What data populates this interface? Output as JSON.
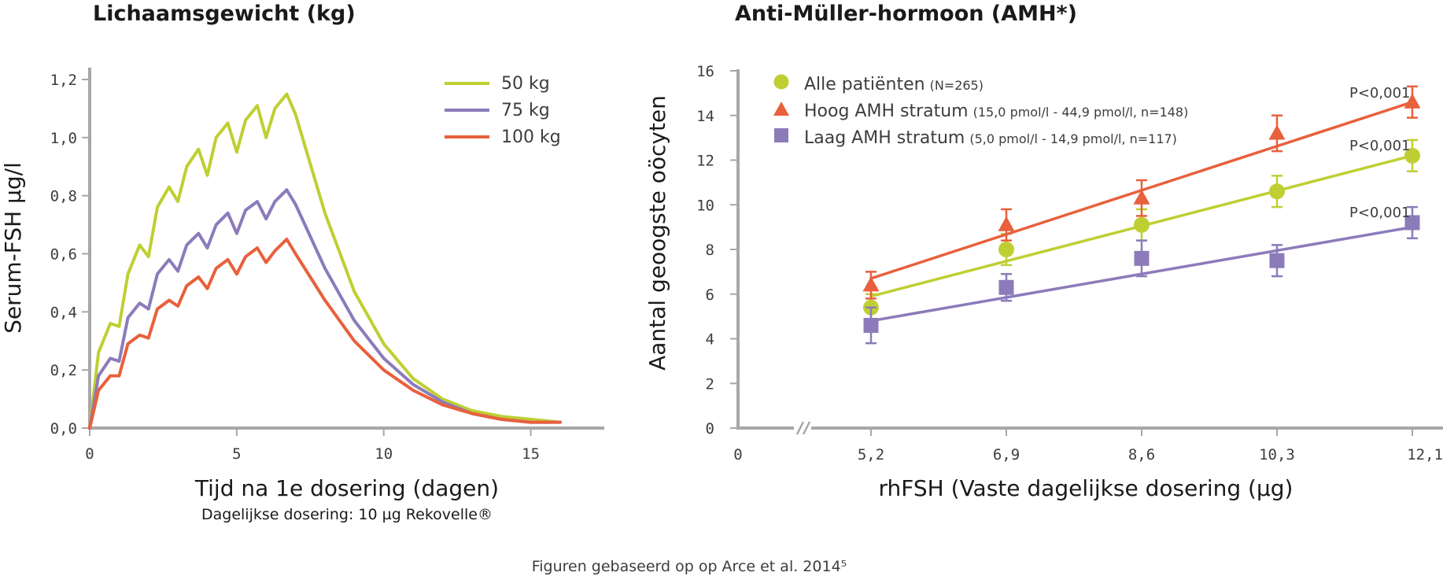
{
  "caption": "Figuren gebaseerd op op Arce et al. 2014⁵",
  "colors": {
    "green": "#bfcf33",
    "purple": "#8c7bba",
    "orange": "#e8603c",
    "axis": "#a7a7ab"
  },
  "chart_data": [
    {
      "type": "line",
      "title": "Lichaamsgewicht (kg)",
      "xlabel": "Tijd na 1e dosering (dagen)",
      "xlabel_note": "Dagelijkse dosering: 10 µg Rekovelle®",
      "ylabel": "Serum-FSH µg/l",
      "xlim": [
        0,
        17.5
      ],
      "ylim": [
        0,
        1.2
      ],
      "x_ticks": [
        0,
        5,
        10,
        15
      ],
      "x_tick_labels": [
        "0",
        "5",
        "10",
        "15"
      ],
      "y_ticks": [
        0,
        0.2,
        0.4,
        0.6,
        0.8,
        1.0,
        1.2
      ],
      "y_tick_labels": [
        "0,0",
        "0,2",
        "0,4",
        "0,6",
        "0,8",
        "1,0",
        "1,2"
      ],
      "legend_position": "top-right",
      "series": [
        {
          "name": "50 kg",
          "color": "#bfcf33",
          "x": [
            0,
            0.3,
            0.7,
            1.0,
            1.3,
            1.7,
            2.0,
            2.3,
            2.7,
            3.0,
            3.3,
            3.7,
            4.0,
            4.3,
            4.7,
            5.0,
            5.3,
            5.7,
            6.0,
            6.3,
            6.7,
            7.0,
            8.0,
            9.0,
            10.0,
            11.0,
            12.0,
            13.0,
            14.0,
            15.0,
            16.0
          ],
          "y": [
            0,
            0.26,
            0.36,
            0.35,
            0.53,
            0.63,
            0.59,
            0.76,
            0.83,
            0.78,
            0.9,
            0.96,
            0.87,
            1.0,
            1.05,
            0.95,
            1.06,
            1.11,
            1.0,
            1.1,
            1.15,
            1.08,
            0.74,
            0.47,
            0.29,
            0.17,
            0.1,
            0.06,
            0.04,
            0.03,
            0.02
          ]
        },
        {
          "name": "75 kg",
          "color": "#8c7bba",
          "x": [
            0,
            0.3,
            0.7,
            1.0,
            1.3,
            1.7,
            2.0,
            2.3,
            2.7,
            3.0,
            3.3,
            3.7,
            4.0,
            4.3,
            4.7,
            5.0,
            5.3,
            5.7,
            6.0,
            6.3,
            6.7,
            7.0,
            8.0,
            9.0,
            10.0,
            11.0,
            12.0,
            13.0,
            14.0,
            15.0,
            16.0
          ],
          "y": [
            0,
            0.18,
            0.24,
            0.23,
            0.38,
            0.43,
            0.41,
            0.53,
            0.58,
            0.54,
            0.63,
            0.67,
            0.62,
            0.7,
            0.74,
            0.67,
            0.75,
            0.78,
            0.72,
            0.78,
            0.82,
            0.77,
            0.55,
            0.37,
            0.24,
            0.15,
            0.09,
            0.05,
            0.03,
            0.02,
            0.02
          ]
        },
        {
          "name": "100 kg",
          "color": "#e8603c",
          "x": [
            0,
            0.3,
            0.7,
            1.0,
            1.3,
            1.7,
            2.0,
            2.3,
            2.7,
            3.0,
            3.3,
            3.7,
            4.0,
            4.3,
            4.7,
            5.0,
            5.3,
            5.7,
            6.0,
            6.3,
            6.7,
            7.0,
            8.0,
            9.0,
            10.0,
            11.0,
            12.0,
            13.0,
            14.0,
            15.0,
            16.0
          ],
          "y": [
            0,
            0.13,
            0.18,
            0.18,
            0.29,
            0.32,
            0.31,
            0.41,
            0.44,
            0.42,
            0.49,
            0.52,
            0.48,
            0.55,
            0.58,
            0.53,
            0.59,
            0.62,
            0.57,
            0.61,
            0.65,
            0.6,
            0.44,
            0.3,
            0.2,
            0.13,
            0.08,
            0.05,
            0.03,
            0.02,
            0.02
          ]
        }
      ]
    },
    {
      "type": "scatter",
      "title": "Anti-Müller-hormoon (AMH*)",
      "xlabel": "rhFSH (Vaste dagelijkse dosering (µg)",
      "ylabel": "Aantal geoogste oöcyten",
      "categories": [
        "5,2",
        "6,9",
        "8,6",
        "10,3",
        "12,1"
      ],
      "x_origin_label": "0",
      "axis_break": true,
      "x_index_range": [
        -0.5,
        4
      ],
      "ylim": [
        0,
        16
      ],
      "y_ticks": [
        0,
        2,
        4,
        6,
        8,
        10,
        12,
        14,
        16
      ],
      "y_tick_labels": [
        "0",
        "2",
        "4",
        "6",
        "8",
        "10",
        "12",
        "14",
        "16"
      ],
      "legend_position": "top-left",
      "series": [
        {
          "name": "Alle patiënten",
          "detail": "(N=265)",
          "marker": "circle",
          "color": "#bfcf33",
          "values": [
            5.4,
            8.0,
            9.1,
            10.6,
            12.2
          ],
          "err_low": [
            0.6,
            0.7,
            0.7,
            0.7,
            0.7
          ],
          "err_high": [
            0.6,
            0.7,
            0.7,
            0.7,
            0.7
          ],
          "fit": [
            5.9,
            12.2
          ],
          "p_value": "P<0,001"
        },
        {
          "name": "Hoog AMH stratum",
          "detail": "(15,0 pmol/l - 44,9 pmol/l, n=148)",
          "marker": "triangle",
          "color": "#e8603c",
          "values": [
            6.4,
            9.1,
            10.3,
            13.2,
            14.6
          ],
          "err_low": [
            0.6,
            0.7,
            0.8,
            0.8,
            0.7
          ],
          "err_high": [
            0.6,
            0.7,
            0.8,
            0.8,
            0.7
          ],
          "fit": [
            6.7,
            14.6
          ],
          "p_value": "P<0,001"
        },
        {
          "name": "Laag AMH stratum",
          "detail": "(5,0 pmol/l - 14,9 pmol/l, n=117)",
          "marker": "square",
          "color": "#8c7bba",
          "values": [
            4.6,
            6.3,
            7.6,
            7.5,
            9.2
          ],
          "err_low": [
            0.8,
            0.6,
            0.8,
            0.7,
            0.7
          ],
          "err_high": [
            0.8,
            0.6,
            0.8,
            0.7,
            0.7
          ],
          "fit": [
            4.8,
            9.0
          ],
          "p_value": "P<0,001"
        }
      ]
    }
  ]
}
